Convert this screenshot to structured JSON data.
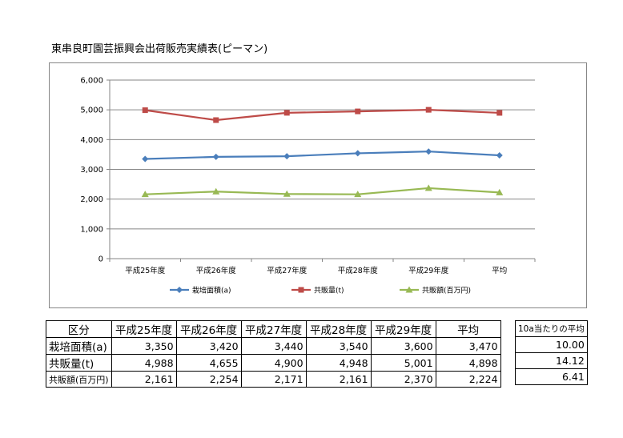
{
  "title": "東串良町園芸振興会出荷販売実績表(ピーマン)",
  "chart_data": {
    "type": "line",
    "categories": [
      "平成25年度",
      "平成26年度",
      "平成27年度",
      "平成28年度",
      "平成29年度",
      "平均"
    ],
    "ylim": [
      0,
      6000
    ],
    "yticks": [
      0,
      1000,
      2000,
      3000,
      4000,
      5000,
      6000
    ],
    "ytick_labels": [
      "0",
      "1,000",
      "2,000",
      "3,000",
      "4,000",
      "5,000",
      "6,000"
    ],
    "grid": true,
    "legend_position": "bottom",
    "series": [
      {
        "name": "栽培面積(a)",
        "values": [
          3350,
          3420,
          3440,
          3540,
          3600,
          3470
        ],
        "color": "#4a7ebb",
        "marker": "diamond"
      },
      {
        "name": "共販量(t)",
        "values": [
          4988,
          4655,
          4900,
          4948,
          5001,
          4898
        ],
        "color": "#be4b48",
        "marker": "square"
      },
      {
        "name": "共販額(百万円)",
        "values": [
          2161,
          2254,
          2171,
          2161,
          2370,
          2224
        ],
        "color": "#98b954",
        "marker": "triangle"
      }
    ]
  },
  "table": {
    "header": [
      "区分",
      "平成25年度",
      "平成26年度",
      "平成27年度",
      "平成28年度",
      "平成29年度",
      "平均"
    ],
    "rows": [
      {
        "label": "栽培面積(a)",
        "cells": [
          "3,350",
          "3,420",
          "3,440",
          "3,540",
          "3,600",
          "3,470"
        ]
      },
      {
        "label": "共販量(t)",
        "cells": [
          "4,988",
          "4,655",
          "4,900",
          "4,948",
          "5,001",
          "4,898"
        ]
      },
      {
        "label": "共販額(百万円)",
        "cells": [
          "2,161",
          "2,254",
          "2,171",
          "2,161",
          "2,370",
          "2,224"
        ]
      }
    ]
  },
  "side_table": {
    "header": "10a当たりの平均",
    "values": [
      "10.00",
      "14.12",
      "6.41"
    ]
  }
}
